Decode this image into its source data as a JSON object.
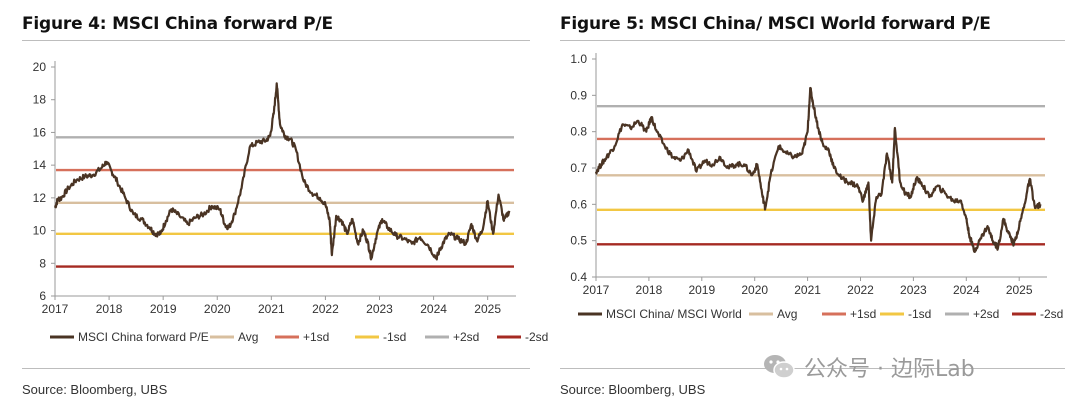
{
  "left": {
    "title": "Figure 4: MSCI China forward P/E",
    "source": "Source: Bloomberg, UBS"
  },
  "right": {
    "title": "Figure 5: MSCI China/ MSCI World forward P/E",
    "source": "Source: Bloomberg, UBS"
  },
  "watermark": {
    "text": "公众号 · 边际Lab",
    "icon": "wechat-icon"
  },
  "chart_data": [
    {
      "type": "line",
      "ylim": [
        6,
        20
      ],
      "yticks": [
        6,
        8,
        10,
        12,
        14,
        16,
        18,
        20
      ],
      "xlim": [
        2017,
        2025.45
      ],
      "xticks": [
        "2017",
        "2018",
        "2019",
        "2020",
        "2021",
        "2022",
        "2023",
        "2024",
        "2025"
      ],
      "grid": false,
      "legend_position": "bottom",
      "series": [
        {
          "name": "MSCI China forward P/E",
          "color": "#4a3424",
          "x": [
            2017.0,
            2017.05,
            2017.12,
            2017.25,
            2017.4,
            2017.55,
            2017.7,
            2017.85,
            2017.95,
            2018.05,
            2018.15,
            2018.3,
            2018.45,
            2018.6,
            2018.75,
            2018.85,
            2018.95,
            2019.05,
            2019.15,
            2019.3,
            2019.45,
            2019.6,
            2019.75,
            2019.9,
            2020.05,
            2020.15,
            2020.22,
            2020.32,
            2020.45,
            2020.6,
            2020.75,
            2020.9,
            2020.98,
            2021.05,
            2021.1,
            2021.16,
            2021.25,
            2021.35,
            2021.45,
            2021.6,
            2021.75,
            2021.9,
            2022.0,
            2022.08,
            2022.12,
            2022.2,
            2022.3,
            2022.4,
            2022.5,
            2022.6,
            2022.7,
            2022.78,
            2022.85,
            2022.95,
            2023.05,
            2023.15,
            2023.3,
            2023.45,
            2023.6,
            2023.75,
            2023.9,
            2024.05,
            2024.1,
            2024.2,
            2024.3,
            2024.45,
            2024.6,
            2024.7,
            2024.8,
            2024.9,
            2025.0,
            2025.1,
            2025.2,
            2025.3,
            2025.4
          ],
          "y": [
            11.4,
            11.9,
            12.0,
            12.6,
            13.1,
            13.3,
            13.4,
            13.8,
            14.2,
            13.6,
            13.0,
            12.0,
            11.0,
            10.7,
            10.2,
            9.8,
            9.8,
            10.6,
            11.3,
            10.9,
            10.4,
            10.8,
            11.0,
            11.5,
            11.3,
            10.3,
            10.2,
            11.0,
            12.6,
            15.1,
            15.4,
            15.5,
            15.8,
            17.3,
            19.0,
            16.5,
            15.8,
            15.6,
            15.0,
            13.0,
            12.3,
            12.0,
            11.6,
            10.6,
            8.5,
            10.9,
            10.6,
            9.8,
            10.7,
            9.2,
            10.0,
            9.3,
            8.3,
            9.8,
            10.7,
            10.2,
            9.7,
            9.5,
            9.2,
            9.6,
            9.1,
            8.3,
            8.7,
            9.4,
            9.8,
            9.5,
            9.2,
            10.4,
            9.4,
            10.0,
            11.8,
            9.8,
            12.2,
            10.6,
            11.2
          ]
        },
        {
          "name": "Avg",
          "color": "#d8bf9f",
          "value": 11.7
        },
        {
          "name": "+1sd",
          "color": "#d6705b",
          "value": 13.7
        },
        {
          "name": "-1sd",
          "color": "#f2c743",
          "value": 9.8
        },
        {
          "name": "+2sd",
          "color": "#b0b0b0",
          "value": 15.7
        },
        {
          "name": "-2sd",
          "color": "#a52a22",
          "value": 7.8
        }
      ]
    },
    {
      "type": "line",
      "ylim": [
        0.4,
        1.0
      ],
      "yticks": [
        "0.4",
        "0.5",
        "0.6",
        "0.7",
        "0.8",
        "0.9",
        "1.0"
      ],
      "xlim": [
        2017,
        2025.45
      ],
      "xticks": [
        "2017",
        "2018",
        "2019",
        "2020",
        "2021",
        "2022",
        "2023",
        "2024",
        "2025"
      ],
      "grid": false,
      "legend_position": "bottom",
      "series": [
        {
          "name": "MSCI China/ MSCI World",
          "color": "#4a3424",
          "x": [
            2017.0,
            2017.1,
            2017.2,
            2017.35,
            2017.5,
            2017.65,
            2017.8,
            2017.95,
            2018.05,
            2018.15,
            2018.3,
            2018.45,
            2018.6,
            2018.75,
            2018.9,
            2019.05,
            2019.2,
            2019.35,
            2019.5,
            2019.65,
            2019.8,
            2019.95,
            2020.05,
            2020.15,
            2020.2,
            2020.3,
            2020.45,
            2020.6,
            2020.75,
            2020.9,
            2021.0,
            2021.05,
            2021.1,
            2021.2,
            2021.3,
            2021.4,
            2021.5,
            2021.65,
            2021.8,
            2021.95,
            2022.05,
            2022.15,
            2022.2,
            2022.3,
            2022.4,
            2022.5,
            2022.6,
            2022.65,
            2022.75,
            2022.85,
            2022.95,
            2023.05,
            2023.15,
            2023.3,
            2023.45,
            2023.6,
            2023.75,
            2023.9,
            2024.0,
            2024.05,
            2024.15,
            2024.25,
            2024.4,
            2024.5,
            2024.6,
            2024.7,
            2024.8,
            2024.9,
            2025.0,
            2025.1,
            2025.2,
            2025.3,
            2025.4
          ],
          "y": [
            0.69,
            0.71,
            0.73,
            0.76,
            0.82,
            0.81,
            0.83,
            0.8,
            0.84,
            0.8,
            0.76,
            0.73,
            0.72,
            0.75,
            0.69,
            0.72,
            0.71,
            0.73,
            0.7,
            0.71,
            0.71,
            0.68,
            0.71,
            0.62,
            0.59,
            0.68,
            0.76,
            0.74,
            0.73,
            0.74,
            0.8,
            0.92,
            0.88,
            0.81,
            0.76,
            0.75,
            0.7,
            0.67,
            0.66,
            0.65,
            0.61,
            0.66,
            0.5,
            0.62,
            0.63,
            0.74,
            0.66,
            0.81,
            0.66,
            0.63,
            0.62,
            0.67,
            0.66,
            0.62,
            0.65,
            0.63,
            0.61,
            0.61,
            0.56,
            0.52,
            0.47,
            0.5,
            0.54,
            0.5,
            0.48,
            0.56,
            0.52,
            0.49,
            0.54,
            0.6,
            0.67,
            0.59,
            0.6
          ]
        },
        {
          "name": "Avg",
          "color": "#d8bf9f",
          "value": 0.68
        },
        {
          "name": "+1sd",
          "color": "#d6705b",
          "value": 0.78
        },
        {
          "name": "-1sd",
          "color": "#f2c743",
          "value": 0.585
        },
        {
          "name": "+2sd",
          "color": "#b0b0b0",
          "value": 0.87
        },
        {
          "name": "-2sd",
          "color": "#a52a22",
          "value": 0.49
        }
      ]
    }
  ]
}
